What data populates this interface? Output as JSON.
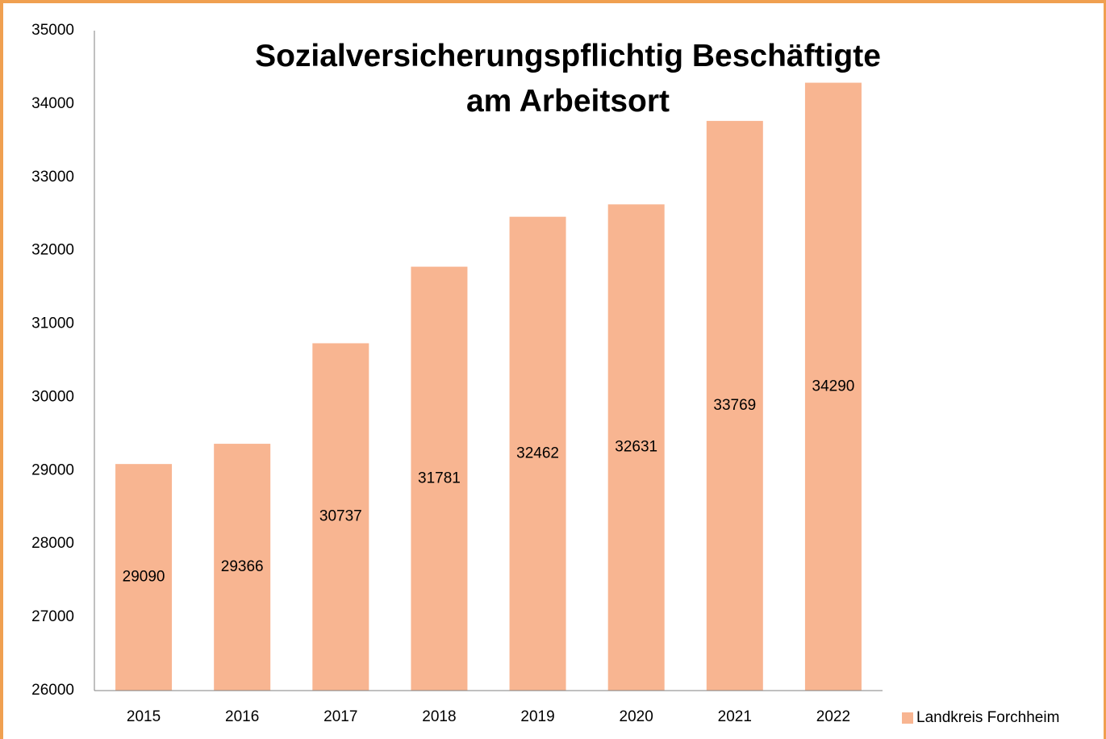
{
  "chart_data": {
    "type": "bar",
    "title": "Sozialversicherungspflichtig Beschäftigte am Arbeitsort",
    "categories": [
      "2015",
      "2016",
      "2017",
      "2018",
      "2019",
      "2020",
      "2021",
      "2022"
    ],
    "series": [
      {
        "name": "Landkreis Forchheim",
        "color": "#f8b591",
        "values": [
          29090,
          29366,
          30737,
          31781,
          32462,
          32631,
          33769,
          34290
        ]
      }
    ],
    "ylim": [
      26000,
      35000
    ],
    "yticks": [
      26000,
      27000,
      28000,
      29000,
      30000,
      31000,
      32000,
      33000,
      34000,
      35000
    ],
    "grid": false,
    "legend": "bottom-right",
    "data_labels": true
  }
}
